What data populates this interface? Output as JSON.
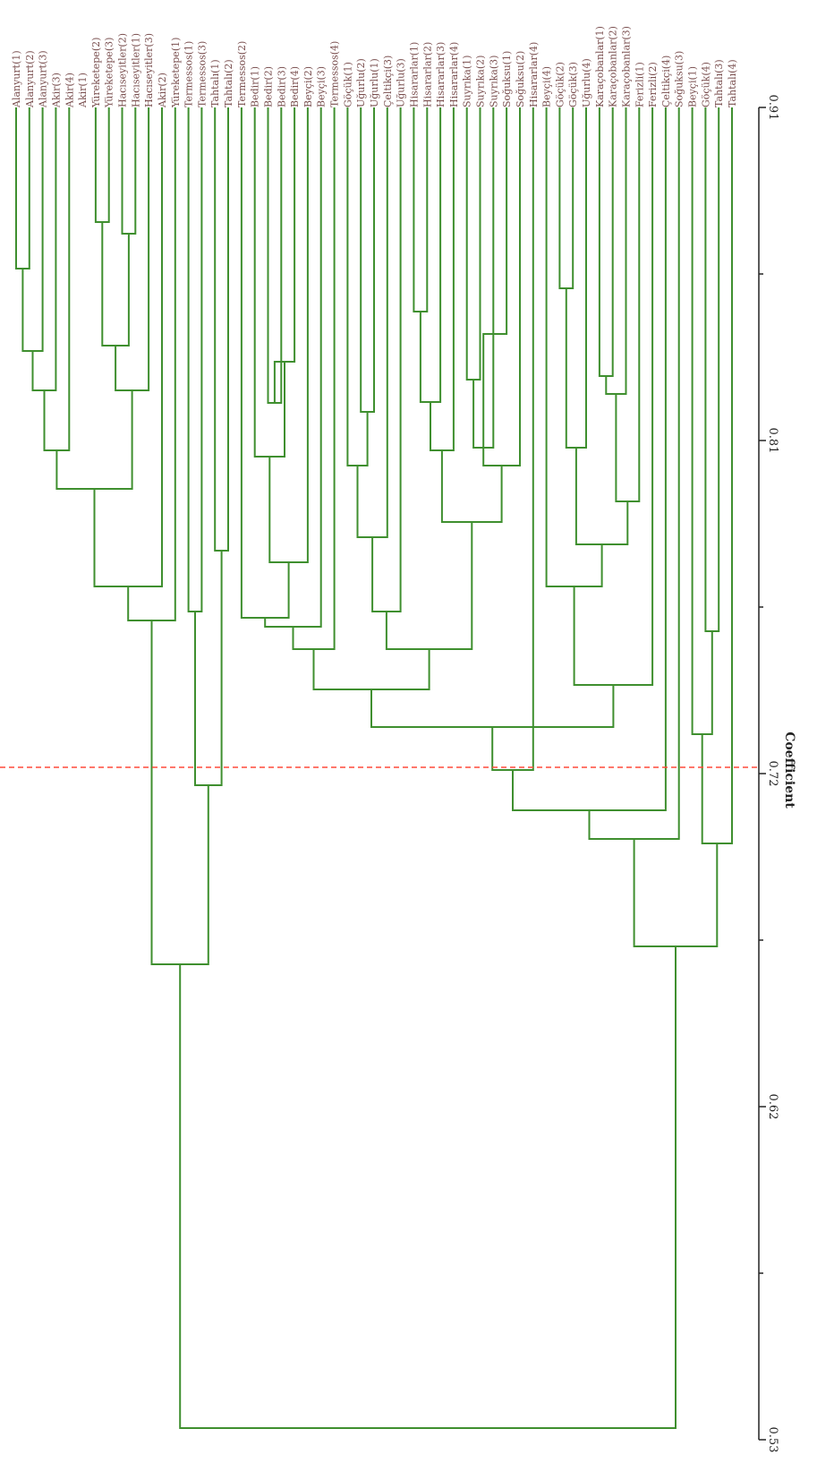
{
  "axis": {
    "title": "Coefficient",
    "ticks": [
      "0.91",
      "0.81",
      "0.72",
      "0.62",
      "0.53"
    ],
    "cutoff": 0.72,
    "cutoff_color": "#ff4a3a"
  },
  "colors": {
    "branch": "#3f8f2f",
    "leaf_label": "#7a4f4f"
  },
  "leaves": [
    "Alanyurt(1)",
    "Alanyurt(2)",
    "Alanyurt(3)",
    "Akir(3)",
    "Akir(4)",
    "Akir(1)",
    "Yüreketepe(2)",
    "Yüreketepe(3)",
    "Hacıseyitler(2)",
    "Hacıseyitler(1)",
    "Hacıseyitler(3)",
    "Akir(2)",
    "Yüreketepe(1)",
    "Termessos(1)",
    "Termessos(3)",
    "Tahtalı(1)",
    "Tahtalı(2)",
    "Termessos(2)",
    "Bedir(1)",
    "Bedir(2)",
    "Bedir(3)",
    "Bedir(4)",
    "Beyçi(2)",
    "Beyçi(3)",
    "Termessos(4)",
    "Göçük(1)",
    "Uğurlu(2)",
    "Uğurlu(1)",
    "Çeltikçi(3)",
    "Uğurlu(3)",
    "Hisararlar(1)",
    "Hisararlar(2)",
    "Hisararlar(3)",
    "Hisararlar(4)",
    "Suyrıka(1)",
    "Suyrıka(2)",
    "Suyrıka(3)",
    "Soğuksu(1)",
    "Soğuksu(2)",
    "Hisararlar(4)",
    "Beyçi(4)",
    "Göçük(2)",
    "Göçük(3)",
    "Uğurlu(4)",
    "Karaçobanlar(1)",
    "Karaçobanlar(2)",
    "Karaçobanlar(3)",
    "Ferizli(1)",
    "Ferizli(2)",
    "Çeltikçi(4)",
    "Soğuksu(3)",
    "Beyçi(1)",
    "Göçük(4)",
    "Tahtalı(3)",
    "Tahtalı(4)"
  ]
}
